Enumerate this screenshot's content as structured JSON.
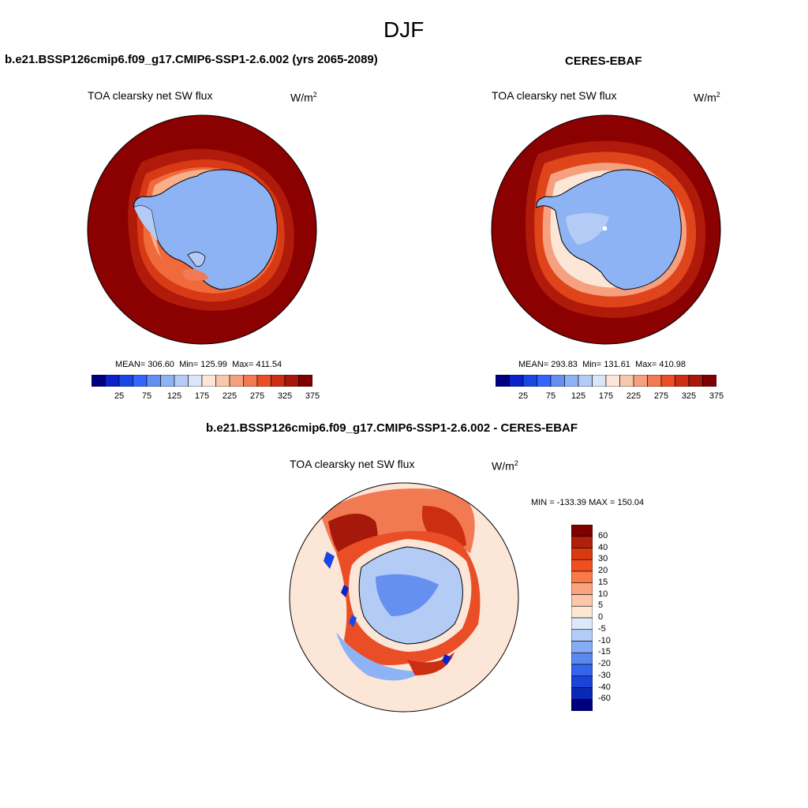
{
  "title": "DJF",
  "panels": {
    "model": {
      "title": "b.e21.BSSP126cmip6.f09_g17.CMIP6-SSP1-2.6.002 (yrs 2065-2089)",
      "variable": "TOA clearsky net SW flux",
      "units_base": "W/m",
      "units_exp": "2",
      "mean": "306.60",
      "min": "125.99",
      "max": "411.54"
    },
    "obs": {
      "title": "CERES-EBAF",
      "variable": "TOA clearsky net SW flux",
      "units_base": "W/m",
      "units_exp": "2",
      "mean": "293.83",
      "min": "131.61",
      "max": "410.98"
    },
    "diff": {
      "title": "b.e21.BSSP126cmip6.f09_g17.CMIP6-SSP1-2.6.002 - CERES-EBAF",
      "variable": "TOA clearsky net SW flux",
      "units_base": "W/m",
      "units_exp": "2",
      "min": "-133.39",
      "max": "150.04"
    }
  },
  "labels": {
    "mean": "MEAN=",
    "min": "Min=",
    "max": "Max=",
    "diff_min": "MIN =",
    "diff_max": "MAX ="
  },
  "colorbar_main": {
    "colors": [
      "#00007f",
      "#0a22c8",
      "#1947e6",
      "#3366ff",
      "#6690f0",
      "#8eb3f5",
      "#b4ccf5",
      "#d9e6fa",
      "#fbe6d8",
      "#f8c8ad",
      "#f5a07f",
      "#f27a52",
      "#ea4e27",
      "#cc2e12",
      "#a6180a",
      "#7f0000"
    ],
    "ticks": [
      "25",
      "75",
      "125",
      "175",
      "225",
      "275",
      "325",
      "375"
    ]
  },
  "colorbar_diff": {
    "colors": [
      "#800000",
      "#b0200a",
      "#d83a10",
      "#f05020",
      "#f87a48",
      "#fba27e",
      "#fdc6ab",
      "#fde6d4",
      "#dde9fb",
      "#b4cdf8",
      "#86acf5",
      "#5b88f0",
      "#3366ec",
      "#1a44d8",
      "#0a28b8",
      "#00007f"
    ],
    "ticks": [
      "60",
      "40",
      "30",
      "20",
      "15",
      "10",
      "5",
      "0",
      "-5",
      "-10",
      "-15",
      "-20",
      "-30",
      "-40",
      "-60"
    ]
  },
  "legend_colors": {
    "dark_red": "#8b0000",
    "ice_blue": "#8eb3f5",
    "diff_background": "#fbe6d8"
  }
}
